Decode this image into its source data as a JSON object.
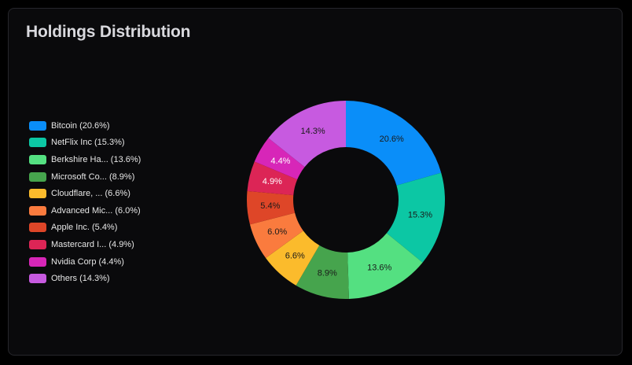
{
  "card": {
    "title": "Holdings Distribution"
  },
  "chart_data": {
    "type": "pie",
    "variant": "doughnut",
    "title": "Holdings Distribution",
    "legend_position": "left",
    "categories": [
      "Bitcoin",
      "NetFlix Inc",
      "Berkshire Ha...",
      "Microsoft Co...",
      "Cloudflare, ...",
      "Advanced Mic...",
      "Apple Inc.",
      "Mastercard I...",
      "Nvidia Corp",
      "Others"
    ],
    "values": [
      20.6,
      15.3,
      13.6,
      8.9,
      6.6,
      6.0,
      5.4,
      4.9,
      4.4,
      14.3
    ],
    "legend_labels": [
      "Bitcoin (20.6%)",
      "NetFlix Inc (15.3%)",
      "Berkshire Ha... (13.6%)",
      "Microsoft Co... (8.9%)",
      "Cloudflare, ... (6.6%)",
      "Advanced Mic... (6.0%)",
      "Apple Inc. (5.4%)",
      "Mastercard I... (4.9%)",
      "Nvidia Corp (4.4%)",
      "Others (14.3%)"
    ],
    "slice_labels": [
      "20.6%",
      "15.3%",
      "13.6%",
      "8.9%",
      "6.6%",
      "6.0%",
      "5.4%",
      "4.9%",
      "4.4%",
      "14.3%"
    ],
    "colors": [
      "#0a8ef9",
      "#0cc7a4",
      "#54e081",
      "#46a44d",
      "#fbbb2c",
      "#fa7b3e",
      "#de4628",
      "#dc2556",
      "#d726b8",
      "#c75ae0"
    ],
    "label_text_light": [
      false,
      false,
      false,
      false,
      false,
      false,
      false,
      true,
      true,
      false
    ]
  }
}
